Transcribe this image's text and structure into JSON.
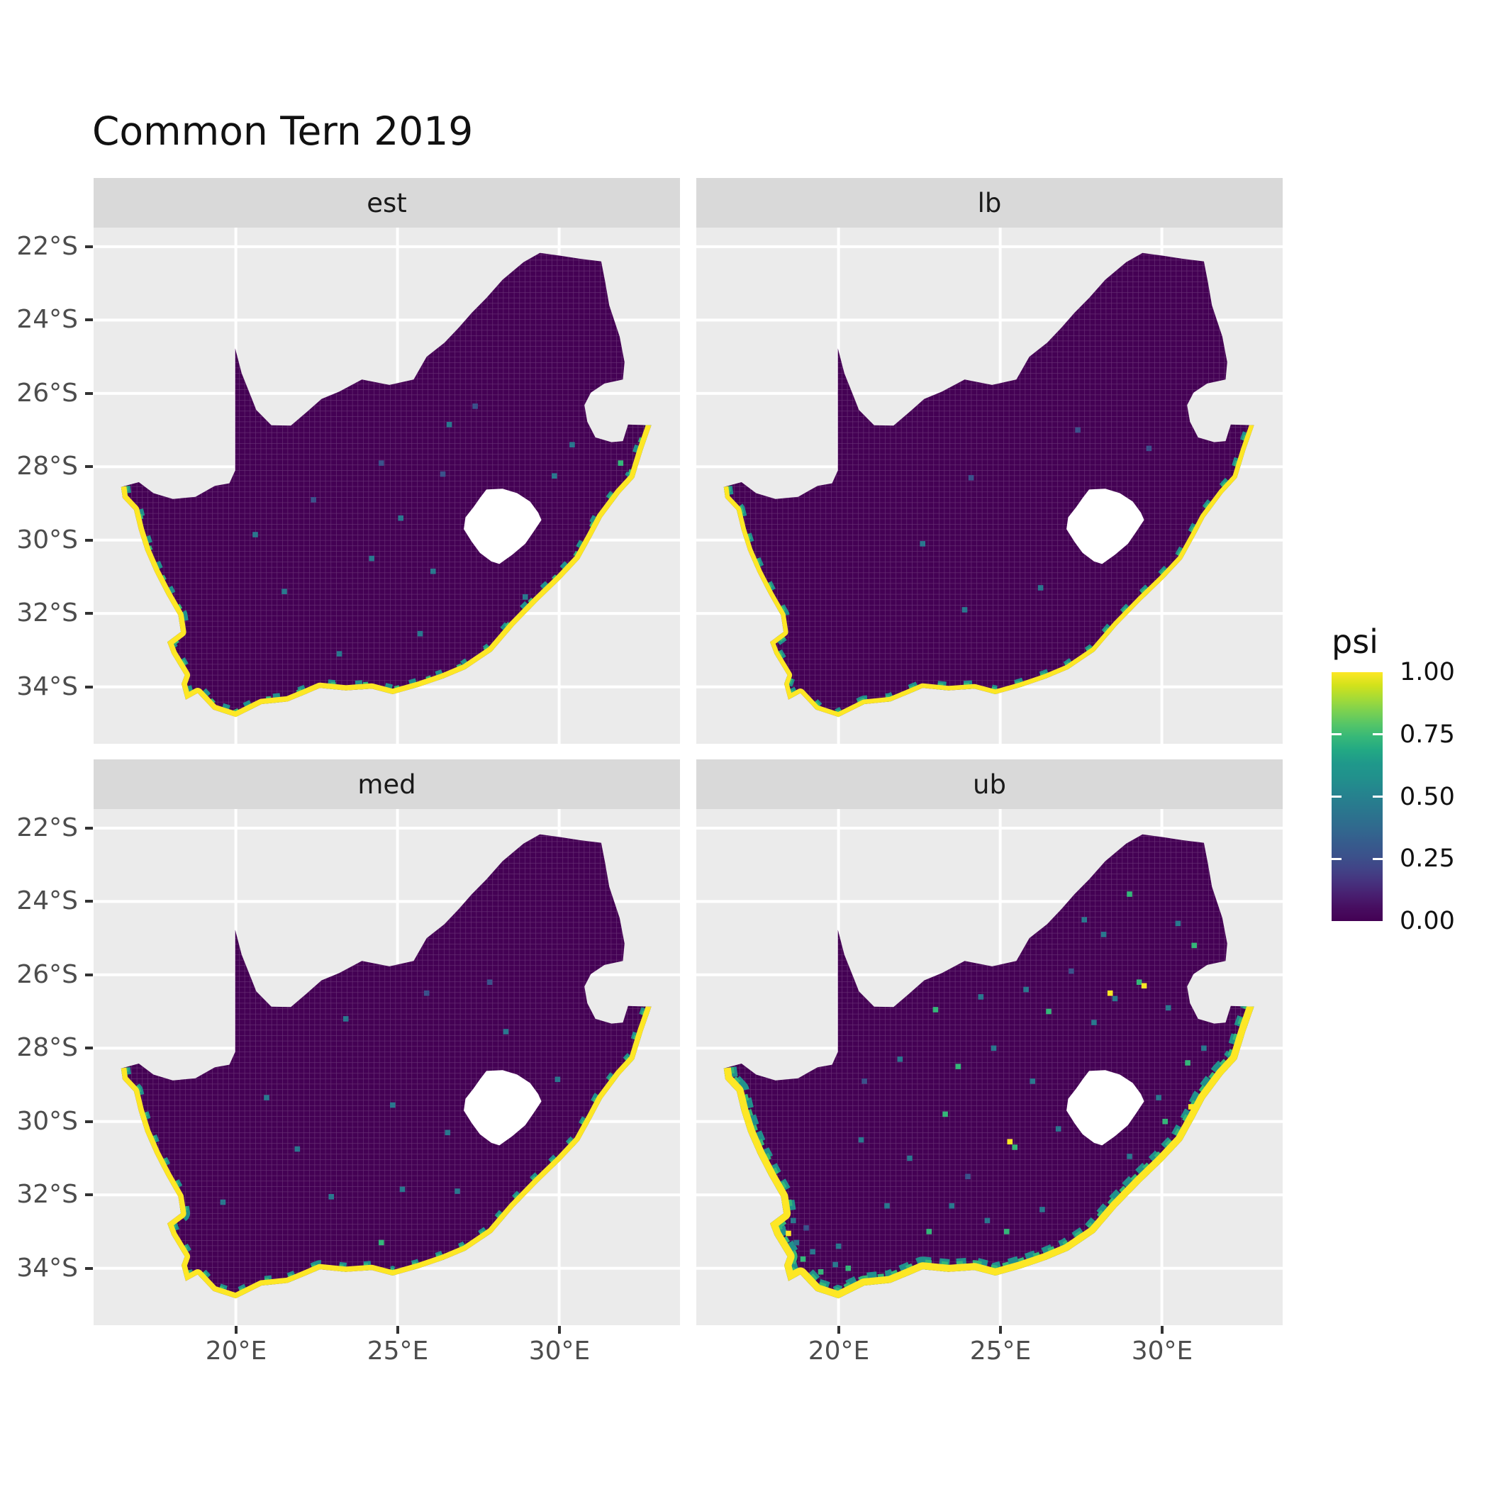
{
  "title": "Common Tern 2019",
  "axes": {
    "x_tick_labels": [
      "20°E",
      "25°E",
      "30°E"
    ],
    "y_tick_labels": [
      "22°S",
      "24°S",
      "26°S",
      "28°S",
      "30°S",
      "32°S",
      "34°S"
    ]
  },
  "legend": {
    "title": "psi",
    "tick_labels": [
      "1.00",
      "0.75",
      "0.50",
      "0.25",
      "0.00"
    ],
    "gradient_top_to_bottom": [
      "#fde725",
      "#d2e21b",
      "#a5db36",
      "#7ad151",
      "#54c568",
      "#35b779",
      "#22a884",
      "#1f988b",
      "#21918c",
      "#24868e",
      "#287c8e",
      "#2c728e",
      "#31688e",
      "#365c8d",
      "#3b528b",
      "#414487",
      "#46327e",
      "#481f70",
      "#470d60",
      "#440154"
    ]
  },
  "colors": {
    "panel_background": "#ebebeb",
    "strip_background": "#d9d9d9",
    "grid_line": "#ffffff",
    "raster_base": "#440154",
    "na_fill": "#ffffff",
    "tick_text": "#4d4d4d"
  },
  "chart_data": {
    "type": "heatmap",
    "title": "Common Tern 2019",
    "variable": "psi",
    "facets": [
      {
        "label": "est",
        "coast_layers": [
          {
            "color": "#21918c",
            "width": 26,
            "dash": "10 30"
          },
          {
            "color": "#35b779",
            "width": 20,
            "dash": "7 40"
          },
          {
            "color": "#fde725",
            "width": 15,
            "dash": null
          }
        ],
        "speckles": [
          [
            24.5,
            27.9,
            "b"
          ],
          [
            26.6,
            26.85,
            "t"
          ],
          [
            25.1,
            29.4,
            "t"
          ],
          [
            24.2,
            30.5,
            "t"
          ],
          [
            26.1,
            30.85,
            "t"
          ],
          [
            28.95,
            31.55,
            "t"
          ],
          [
            22.4,
            28.9,
            "b"
          ],
          [
            20.6,
            29.85,
            "t"
          ],
          [
            29.85,
            28.25,
            "t"
          ],
          [
            27.4,
            26.35,
            "b"
          ],
          [
            21.5,
            31.4,
            "t"
          ],
          [
            25.7,
            32.55,
            "t"
          ],
          [
            23.2,
            33.1,
            "t"
          ],
          [
            26.4,
            28.2,
            "b"
          ],
          [
            30.4,
            27.4,
            "t"
          ],
          [
            31.9,
            27.9,
            "g"
          ]
        ]
      },
      {
        "label": "lb",
        "coast_layers": [
          {
            "color": "#21918c",
            "width": 24,
            "dash": "12 26"
          },
          {
            "color": "#35b779",
            "width": 18,
            "dash": "8 30"
          },
          {
            "color": "#fde725",
            "width": 13,
            "dash": null
          }
        ],
        "speckles": [
          [
            24.1,
            28.3,
            "b"
          ],
          [
            27.4,
            27.0,
            "b"
          ],
          [
            22.6,
            30.1,
            "t"
          ],
          [
            26.25,
            31.3,
            "t"
          ],
          [
            29.6,
            27.5,
            "b"
          ],
          [
            23.9,
            31.9,
            "t"
          ]
        ]
      },
      {
        "label": "med",
        "coast_layers": [
          {
            "color": "#21918c",
            "width": 26,
            "dash": "10 26"
          },
          {
            "color": "#35b779",
            "width": 20,
            "dash": "6 30"
          },
          {
            "color": "#fde725",
            "width": 15,
            "dash": null
          }
        ],
        "speckles": [
          [
            23.4,
            27.2,
            "t"
          ],
          [
            25.9,
            26.5,
            "b"
          ],
          [
            24.85,
            29.55,
            "t"
          ],
          [
            26.55,
            30.3,
            "t"
          ],
          [
            21.9,
            30.75,
            "t"
          ],
          [
            28.35,
            27.55,
            "t"
          ],
          [
            29.95,
            28.85,
            "t"
          ],
          [
            22.95,
            32.05,
            "t"
          ],
          [
            25.15,
            31.85,
            "t"
          ],
          [
            27.85,
            26.2,
            "b"
          ],
          [
            20.95,
            29.35,
            "t"
          ],
          [
            24.5,
            33.3,
            "g"
          ],
          [
            19.6,
            32.2,
            "t"
          ],
          [
            26.85,
            31.9,
            "t"
          ]
        ]
      },
      {
        "label": "ub",
        "coast_layers": [
          {
            "color": "#21918c",
            "width": 36,
            "dash": "14 12"
          },
          {
            "color": "#35b779",
            "width": 28,
            "dash": "9 14"
          },
          {
            "color": "#fde725",
            "width": 20,
            "dash": null
          }
        ],
        "speckles": [
          [
            18.7,
            33.3,
            "t"
          ],
          [
            18.9,
            33.75,
            "g"
          ],
          [
            19.2,
            33.55,
            "t"
          ],
          [
            19.45,
            34.1,
            "g"
          ],
          [
            18.6,
            32.7,
            "t"
          ],
          [
            19.9,
            33.9,
            "t"
          ],
          [
            20.3,
            34.0,
            "g"
          ],
          [
            19.0,
            32.9,
            "b"
          ],
          [
            20.0,
            33.4,
            "t"
          ],
          [
            18.45,
            33.05,
            "y"
          ],
          [
            21.5,
            32.3,
            "t"
          ],
          [
            22.8,
            33.0,
            "g"
          ],
          [
            23.5,
            32.3,
            "t"
          ],
          [
            24.6,
            32.7,
            "t"
          ],
          [
            25.2,
            33.0,
            "g"
          ],
          [
            26.3,
            32.4,
            "t"
          ],
          [
            24.0,
            31.5,
            "b"
          ],
          [
            22.2,
            31.0,
            "t"
          ],
          [
            20.7,
            30.5,
            "t"
          ],
          [
            23.3,
            29.8,
            "g"
          ],
          [
            25.3,
            30.55,
            "y"
          ],
          [
            25.45,
            30.7,
            "g"
          ],
          [
            26.8,
            30.2,
            "t"
          ],
          [
            27.9,
            27.3,
            "t"
          ],
          [
            26.5,
            27.0,
            "g"
          ],
          [
            25.8,
            26.4,
            "t"
          ],
          [
            27.2,
            25.9,
            "b"
          ],
          [
            28.4,
            26.5,
            "y"
          ],
          [
            28.55,
            26.65,
            "t"
          ],
          [
            29.3,
            26.2,
            "g"
          ],
          [
            29.45,
            26.3,
            "y"
          ],
          [
            30.2,
            26.9,
            "t"
          ],
          [
            24.8,
            28.0,
            "t"
          ],
          [
            23.7,
            28.5,
            "g"
          ],
          [
            21.9,
            28.3,
            "t"
          ],
          [
            20.8,
            28.9,
            "b"
          ],
          [
            29.0,
            30.95,
            "t"
          ],
          [
            30.1,
            30.0,
            "g"
          ],
          [
            29.9,
            29.35,
            "t"
          ],
          [
            30.8,
            28.4,
            "g"
          ],
          [
            31.3,
            28.0,
            "t"
          ],
          [
            28.2,
            24.9,
            "t"
          ],
          [
            29.0,
            23.8,
            "g"
          ],
          [
            27.6,
            24.5,
            "t"
          ],
          [
            30.5,
            24.6,
            "t"
          ],
          [
            31.0,
            25.2,
            "g"
          ],
          [
            26.0,
            28.9,
            "t"
          ],
          [
            24.4,
            26.6,
            "t"
          ],
          [
            23.0,
            26.95,
            "g"
          ],
          [
            30.9,
            29.6,
            "y"
          ]
        ]
      }
    ],
    "speckle_colors": {
      "t": "#2a788e",
      "g": "#35b779",
      "y": "#fde725",
      "b": "#3b528b"
    },
    "x_domain_deg_east": [
      15.6,
      33.74
    ],
    "y_domain_deg_south": [
      21.48,
      35.56
    ],
    "x_ticks_deg_east": [
      20,
      25,
      30
    ],
    "y_ticks_deg_south": [
      22,
      24,
      26,
      28,
      30,
      32,
      34
    ],
    "color_scale": {
      "name": "viridis",
      "variable": "psi",
      "domain": [
        0,
        1
      ],
      "ticks": [
        0,
        0.25,
        0.5,
        0.75,
        1
      ]
    },
    "values_description": "Occupancy probability psi is ~0 (dark purple) across the interior of South Africa in all four panels (est, lb, med, ub); psi approaches 1 (yellow) in a narrow band of coastal raster cells with teal/green cells just inland of the coast; the ub (upper bound) panel additionally shows scattered higher-psi cells inland. Lesotho is a white (no-data) hole; Eswatini is excluded (panel background).",
    "interior_value": 0.02,
    "coastal_value": 1.0,
    "map": {
      "south_africa_outline": [
        [
          16.45,
          28.55
        ],
        [
          17.0,
          28.42
        ],
        [
          17.45,
          28.72
        ],
        [
          18.05,
          28.88
        ],
        [
          18.75,
          28.82
        ],
        [
          19.35,
          28.52
        ],
        [
          19.8,
          28.45
        ],
        [
          19.98,
          28.1
        ],
        [
          19.98,
          24.77
        ],
        [
          20.18,
          25.45
        ],
        [
          20.45,
          26.05
        ],
        [
          20.63,
          26.45
        ],
        [
          21.1,
          26.87
        ],
        [
          21.7,
          26.88
        ],
        [
          22.2,
          26.5
        ],
        [
          22.65,
          26.15
        ],
        [
          23.2,
          25.95
        ],
        [
          23.9,
          25.62
        ],
        [
          24.75,
          25.77
        ],
        [
          25.5,
          25.62
        ],
        [
          25.9,
          25.0
        ],
        [
          26.45,
          24.62
        ],
        [
          26.9,
          24.2
        ],
        [
          27.3,
          23.8
        ],
        [
          27.75,
          23.4
        ],
        [
          28.25,
          22.9
        ],
        [
          28.9,
          22.42
        ],
        [
          29.4,
          22.17
        ],
        [
          30.05,
          22.25
        ],
        [
          30.65,
          22.33
        ],
        [
          31.3,
          22.4
        ],
        [
          31.42,
          22.95
        ],
        [
          31.55,
          23.6
        ],
        [
          31.87,
          24.45
        ],
        [
          32.02,
          25.15
        ],
        [
          31.97,
          25.62
        ],
        [
          31.4,
          25.73
        ],
        [
          30.98,
          25.98
        ],
        [
          30.78,
          26.32
        ],
        [
          30.87,
          26.77
        ],
        [
          31.12,
          27.2
        ],
        [
          31.62,
          27.33
        ],
        [
          31.97,
          27.3
        ],
        [
          32.13,
          26.85
        ],
        [
          32.85,
          26.87
        ],
        [
          32.58,
          27.55
        ],
        [
          32.32,
          28.3
        ],
        [
          31.88,
          28.72
        ],
        [
          31.32,
          29.38
        ],
        [
          31.02,
          29.88
        ],
        [
          30.62,
          30.52
        ],
        [
          30.02,
          31.08
        ],
        [
          29.35,
          31.65
        ],
        [
          28.6,
          32.33
        ],
        [
          27.92,
          33.03
        ],
        [
          27.1,
          33.52
        ],
        [
          26.42,
          33.77
        ],
        [
          25.65,
          34.0
        ],
        [
          24.85,
          34.2
        ],
        [
          24.2,
          34.05
        ],
        [
          23.4,
          34.1
        ],
        [
          22.6,
          34.03
        ],
        [
          22.15,
          34.2
        ],
        [
          21.6,
          34.4
        ],
        [
          20.8,
          34.47
        ],
        [
          20.0,
          34.82
        ],
        [
          19.3,
          34.62
        ],
        [
          18.82,
          34.17
        ],
        [
          18.45,
          34.35
        ],
        [
          18.32,
          33.92
        ],
        [
          18.42,
          33.68
        ],
        [
          18.02,
          33.1
        ],
        [
          17.88,
          32.78
        ],
        [
          18.3,
          32.5
        ],
        [
          18.22,
          32.05
        ],
        [
          17.85,
          31.48
        ],
        [
          17.5,
          30.88
        ],
        [
          17.2,
          30.28
        ],
        [
          17.0,
          29.72
        ],
        [
          16.85,
          29.18
        ],
        [
          16.5,
          28.85
        ]
      ],
      "lesotho_hole": [
        [
          27.75,
          28.62
        ],
        [
          28.25,
          28.6
        ],
        [
          28.7,
          28.72
        ],
        [
          29.1,
          28.95
        ],
        [
          29.35,
          29.25
        ],
        [
          29.45,
          29.45
        ],
        [
          29.2,
          29.78
        ],
        [
          28.95,
          30.1
        ],
        [
          28.55,
          30.4
        ],
        [
          28.15,
          30.65
        ],
        [
          27.9,
          30.58
        ],
        [
          27.55,
          30.35
        ],
        [
          27.3,
          30.05
        ],
        [
          27.05,
          29.7
        ],
        [
          27.1,
          29.38
        ],
        [
          27.35,
          29.1
        ],
        [
          27.55,
          28.85
        ]
      ],
      "coastline": [
        [
          16.45,
          28.55
        ],
        [
          16.5,
          28.85
        ],
        [
          16.85,
          29.18
        ],
        [
          17.0,
          29.72
        ],
        [
          17.2,
          30.28
        ],
        [
          17.5,
          30.88
        ],
        [
          17.85,
          31.48
        ],
        [
          18.22,
          32.05
        ],
        [
          18.3,
          32.5
        ],
        [
          17.88,
          32.78
        ],
        [
          18.02,
          33.1
        ],
        [
          18.42,
          33.68
        ],
        [
          18.32,
          33.92
        ],
        [
          18.45,
          34.35
        ],
        [
          18.82,
          34.17
        ],
        [
          19.3,
          34.62
        ],
        [
          20.0,
          34.82
        ],
        [
          20.8,
          34.47
        ],
        [
          21.6,
          34.4
        ],
        [
          22.15,
          34.2
        ],
        [
          22.6,
          34.03
        ],
        [
          23.4,
          34.1
        ],
        [
          24.2,
          34.05
        ],
        [
          24.85,
          34.2
        ],
        [
          25.65,
          34.0
        ],
        [
          26.42,
          33.77
        ],
        [
          27.1,
          33.52
        ],
        [
          27.92,
          33.03
        ],
        [
          28.6,
          32.33
        ],
        [
          29.35,
          31.65
        ],
        [
          30.02,
          31.08
        ],
        [
          30.62,
          30.52
        ],
        [
          31.02,
          29.88
        ],
        [
          31.32,
          29.38
        ],
        [
          31.88,
          28.72
        ],
        [
          32.32,
          28.3
        ],
        [
          32.58,
          27.55
        ],
        [
          32.85,
          26.87
        ]
      ]
    }
  }
}
